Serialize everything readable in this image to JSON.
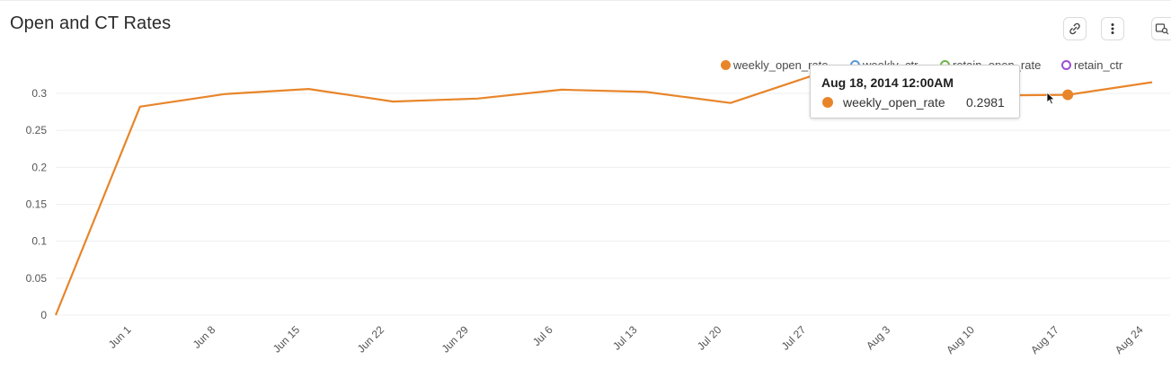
{
  "header": {
    "title": "Open and CT Rates"
  },
  "toolbar": {
    "buttons": [
      {
        "name": "link-button",
        "icon": "link-icon"
      },
      {
        "name": "more-options-button",
        "icon": "kebab-menu-icon"
      },
      {
        "name": "explore-button",
        "icon": "search-chart-icon"
      }
    ]
  },
  "legend": [
    {
      "label": "weekly_open_rate",
      "color": "#e8852a",
      "filled": true
    },
    {
      "label": "weekly_ctr",
      "color": "#5b9bd5",
      "filled": false
    },
    {
      "label": "retain_open_rate",
      "color": "#70b54a",
      "filled": false
    },
    {
      "label": "retain_ctr",
      "color": "#9b4fd6",
      "filled": false
    }
  ],
  "tooltip": {
    "title": "Aug 18, 2014 12:00AM",
    "series": "weekly_open_rate",
    "value": "0.2981",
    "color": "#e8852a"
  },
  "chart_data": {
    "type": "line",
    "title": "Open and CT Rates",
    "xlabel": "",
    "ylabel": "",
    "ylim": [
      0,
      0.3
    ],
    "yticks": [
      "0",
      "0.05",
      "0.1",
      "0.15",
      "0.2",
      "0.25",
      "0.3"
    ],
    "ytick_values": [
      0,
      0.05,
      0.1,
      0.15,
      0.2,
      0.25,
      0.3
    ],
    "xtick_labels": [
      "Jun 1",
      "Jun 8",
      "Jun 15",
      "Jun 22",
      "Jun 29",
      "Jul 6",
      "Jul 13",
      "Jul 20",
      "Jul 27",
      "Aug 3",
      "Aug 10",
      "Aug 17",
      "Aug 24"
    ],
    "grid": true,
    "legend_position": "top-right",
    "highlighted_point": {
      "x": "2014-08-18",
      "series": "weekly_open_rate"
    },
    "series": [
      {
        "name": "weekly_open_rate",
        "color": "#e8852a",
        "x": [
          "2014-05-26",
          "2014-06-02",
          "2014-06-09",
          "2014-06-16",
          "2014-06-23",
          "2014-06-30",
          "2014-07-07",
          "2014-07-14",
          "2014-07-21",
          "2014-07-28",
          "2014-08-04",
          "2014-08-11",
          "2014-08-18",
          "2014-08-25"
        ],
        "values": [
          0.0,
          0.282,
          0.299,
          0.306,
          0.289,
          0.293,
          0.305,
          0.302,
          0.287,
          0.325,
          0.305,
          0.297,
          0.2981,
          0.315
        ]
      },
      {
        "name": "weekly_ctr",
        "color": "#5b9bd5",
        "x": [],
        "values": []
      },
      {
        "name": "retain_open_rate",
        "color": "#70b54a",
        "x": [],
        "values": []
      },
      {
        "name": "retain_ctr",
        "color": "#9b4fd6",
        "x": [],
        "values": []
      }
    ]
  }
}
